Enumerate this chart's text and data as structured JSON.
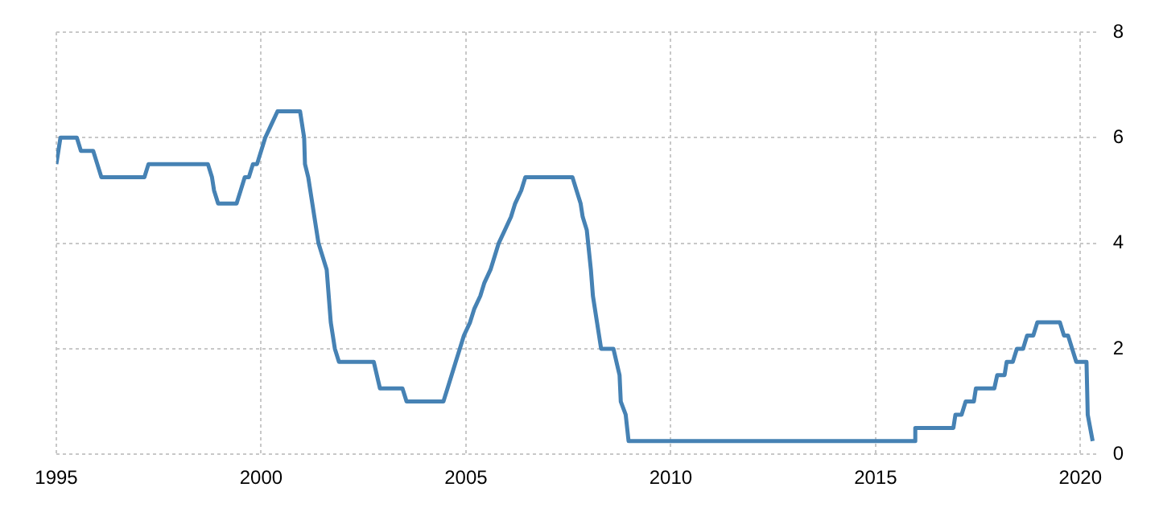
{
  "chart_data": {
    "type": "line",
    "x": [
      1995.0,
      1995.1,
      1995.5,
      1995.6,
      1995.9,
      1996.0,
      1996.1,
      1997.15,
      1997.25,
      1998.7,
      1998.8,
      1998.85,
      1998.95,
      1999.4,
      1999.5,
      1999.6,
      1999.7,
      1999.8,
      1999.9,
      2000.0,
      2000.1,
      2000.25,
      2000.4,
      2000.95,
      2001.05,
      2001.07,
      2001.15,
      2001.3,
      2001.4,
      2001.5,
      2001.6,
      2001.7,
      2001.8,
      2001.9,
      2002.75,
      2002.9,
      2003.45,
      2003.55,
      2004.45,
      2004.55,
      2004.65,
      2004.75,
      2004.85,
      2004.95,
      2005.1,
      2005.2,
      2005.35,
      2005.45,
      2005.6,
      2005.7,
      2005.8,
      2005.95,
      2006.1,
      2006.2,
      2006.35,
      2006.45,
      2007.6,
      2007.7,
      2007.8,
      2007.85,
      2007.95,
      2008.05,
      2008.1,
      2008.2,
      2008.3,
      2008.6,
      2008.75,
      2008.78,
      2008.9,
      2008.97,
      2015.95,
      2015.97,
      2016.9,
      2016.95,
      2017.1,
      2017.2,
      2017.4,
      2017.45,
      2017.9,
      2017.97,
      2018.15,
      2018.2,
      2018.35,
      2018.45,
      2018.6,
      2018.7,
      2018.85,
      2018.95,
      2019.5,
      2019.6,
      2019.7,
      2019.8,
      2019.9,
      2020.15,
      2020.18,
      2020.3
    ],
    "series": [
      {
        "color": "#4682b4",
        "values": [
          5.5,
          6.0,
          6.0,
          5.75,
          5.75,
          5.5,
          5.25,
          5.25,
          5.5,
          5.5,
          5.25,
          5.0,
          4.75,
          4.75,
          5.0,
          5.25,
          5.25,
          5.5,
          5.5,
          5.75,
          6.0,
          6.25,
          6.5,
          6.5,
          6.0,
          5.5,
          5.25,
          4.5,
          4.0,
          3.75,
          3.5,
          2.5,
          2.0,
          1.75,
          1.75,
          1.25,
          1.25,
          1.0,
          1.0,
          1.25,
          1.5,
          1.75,
          2.0,
          2.25,
          2.5,
          2.75,
          3.0,
          3.25,
          3.5,
          3.75,
          4.0,
          4.25,
          4.5,
          4.75,
          5.0,
          5.25,
          5.25,
          5.0,
          4.75,
          4.5,
          4.25,
          3.5,
          3.0,
          2.5,
          2.0,
          2.0,
          1.5,
          1.0,
          0.75,
          0.25,
          0.25,
          0.5,
          0.5,
          0.75,
          0.75,
          1.0,
          1.0,
          1.25,
          1.25,
          1.5,
          1.5,
          1.75,
          1.75,
          2.0,
          2.0,
          2.25,
          2.25,
          2.5,
          2.5,
          2.25,
          2.25,
          2.0,
          1.75,
          1.75,
          0.75,
          0.25
        ]
      }
    ],
    "xlim": [
      1995,
      2020.4
    ],
    "xticks": [
      1995,
      2000,
      2005,
      2010,
      2015,
      2020
    ],
    "ylim": [
      0,
      8
    ],
    "yticks": [
      0,
      2,
      4,
      6,
      8
    ],
    "grid": true,
    "legend": false,
    "marker": "none",
    "line_style": "solid"
  }
}
